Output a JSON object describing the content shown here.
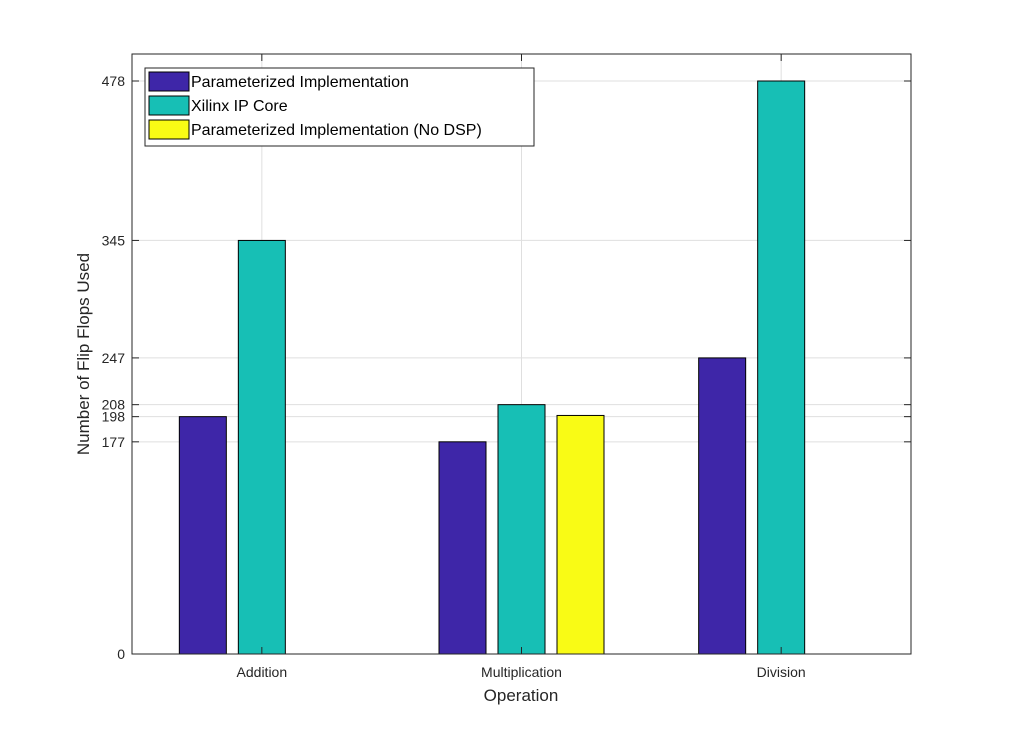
{
  "chart_data": {
    "type": "bar",
    "title": "",
    "xlabel": "Operation",
    "ylabel": "Number of Flip Flops Used",
    "categories": [
      "Addition",
      "Multiplication",
      "Division"
    ],
    "series": [
      {
        "name": "Parameterized Implementation",
        "color": "#3e26a8",
        "values": [
          198,
          177,
          247
        ]
      },
      {
        "name": "Xilinx IP Core",
        "color": "#17bfb5",
        "values": [
          345,
          208,
          478
        ]
      },
      {
        "name": "Parameterized Implementation (No DSP)",
        "color": "#f9fb15",
        "values": [
          null,
          199,
          null
        ]
      }
    ],
    "yticks": [
      0,
      177,
      198,
      208,
      247,
      345,
      478
    ],
    "ylim": [
      0,
      478
    ],
    "grid": true,
    "legend_position": "top-left"
  }
}
